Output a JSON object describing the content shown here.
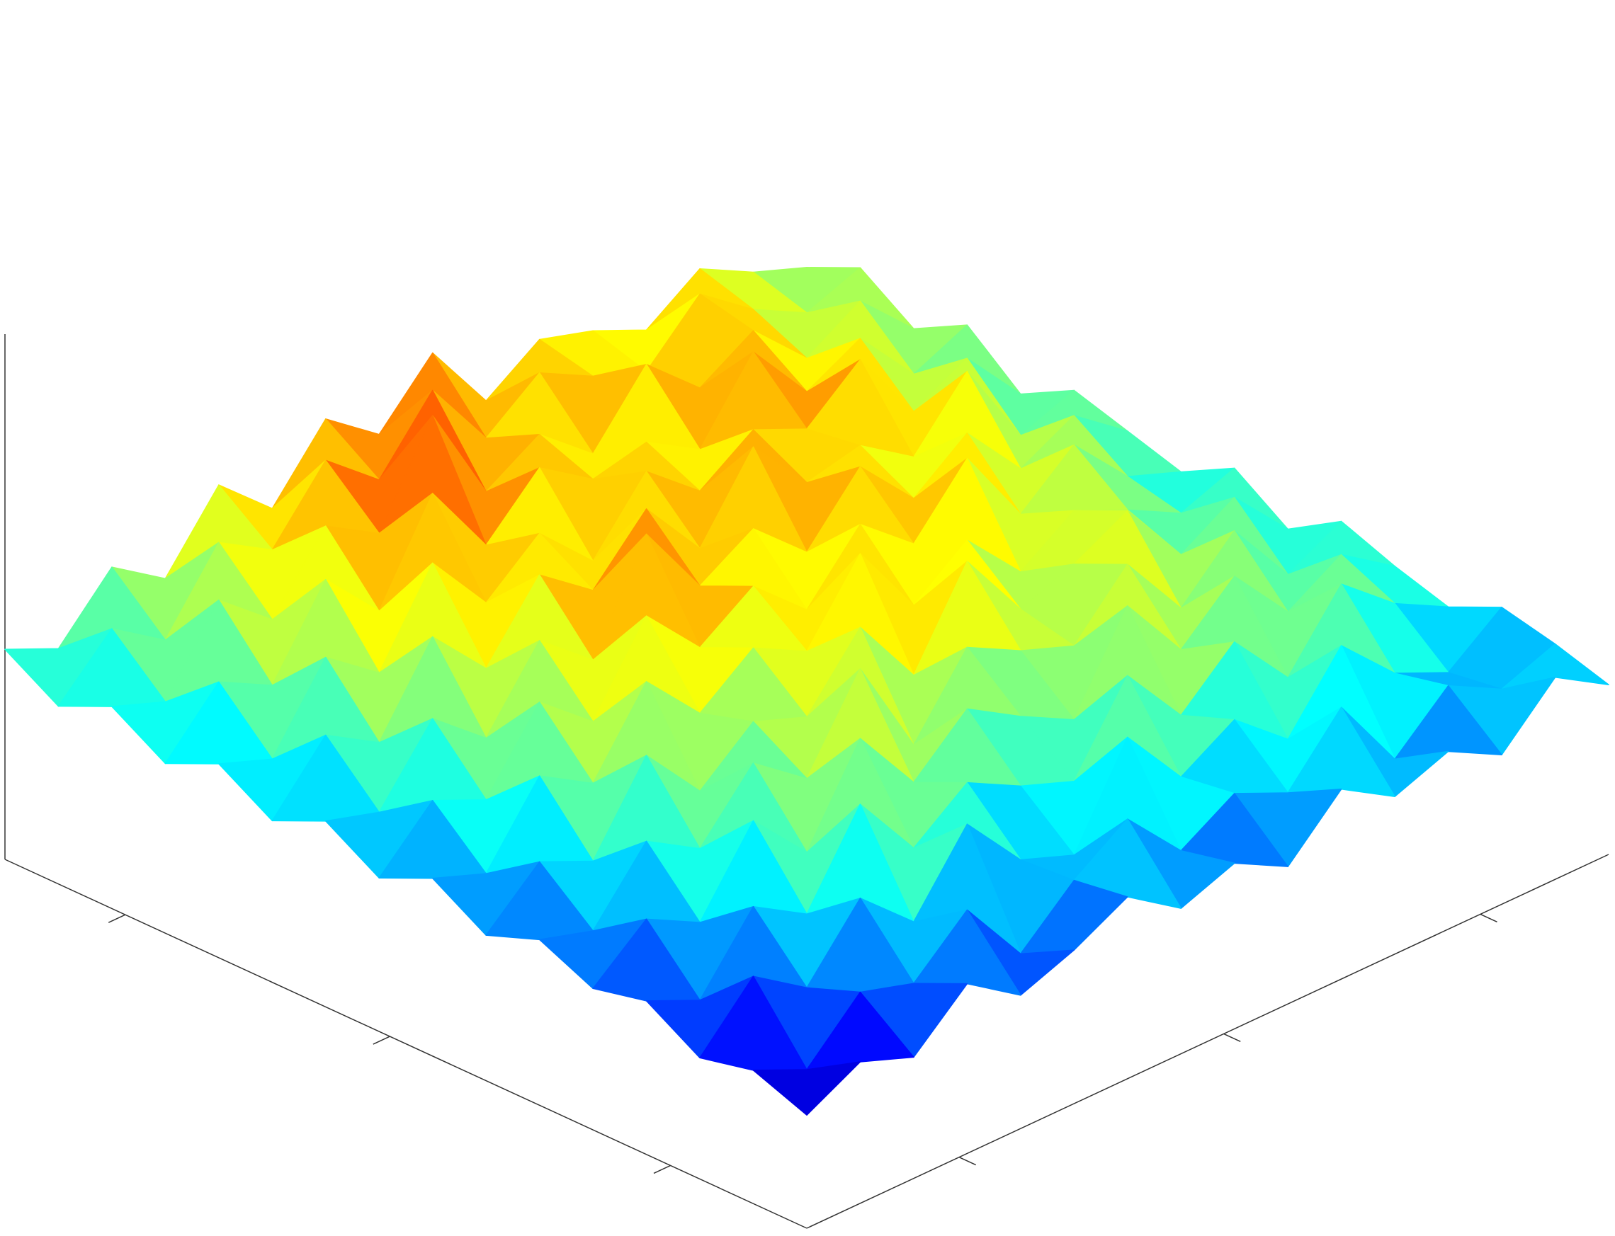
{
  "chart_data": {
    "type": "surface",
    "colormap": "jet",
    "xlim": [
      0,
      1
    ],
    "ylim": [
      0,
      1
    ],
    "zlim": [
      0,
      1.3
    ],
    "clim": [
      0.25,
      0.85
    ],
    "xticks": [
      0.17,
      0.52,
      0.85
    ],
    "yticks": [
      0.19,
      0.52,
      0.84
    ],
    "z": [
      [
        0.28,
        0.35,
        0.3,
        0.42,
        0.33,
        0.38,
        0.45,
        0.36,
        0.41,
        0.34,
        0.47,
        0.39,
        0.44,
        0.37,
        0.5,
        0.42
      ],
      [
        0.33,
        0.27,
        0.4,
        0.36,
        0.48,
        0.31,
        0.43,
        0.52,
        0.38,
        0.46,
        0.4,
        0.55,
        0.36,
        0.48,
        0.41,
        0.46
      ],
      [
        0.3,
        0.44,
        0.35,
        0.51,
        0.39,
        0.57,
        0.42,
        0.37,
        0.6,
        0.44,
        0.52,
        0.41,
        0.58,
        0.45,
        0.39,
        0.49
      ],
      [
        0.38,
        0.32,
        0.49,
        0.41,
        0.62,
        0.45,
        0.55,
        0.48,
        0.43,
        0.63,
        0.47,
        0.59,
        0.44,
        0.61,
        0.5,
        0.43
      ],
      [
        0.35,
        0.46,
        0.39,
        0.58,
        0.44,
        0.66,
        0.49,
        0.61,
        0.53,
        0.46,
        0.68,
        0.51,
        0.63,
        0.48,
        0.56,
        0.47
      ],
      [
        0.41,
        0.37,
        0.53,
        0.45,
        0.6,
        0.5,
        0.71,
        0.46,
        0.64,
        0.57,
        0.52,
        0.66,
        0.49,
        0.62,
        0.45,
        0.52
      ],
      [
        0.36,
        0.48,
        0.42,
        0.62,
        0.47,
        0.58,
        0.53,
        0.69,
        0.51,
        0.73,
        0.55,
        0.6,
        0.67,
        0.5,
        0.58,
        0.44
      ],
      [
        0.44,
        0.39,
        0.57,
        0.49,
        0.68,
        0.54,
        0.64,
        0.57,
        0.75,
        0.56,
        0.66,
        0.52,
        0.61,
        0.55,
        0.48,
        0.53
      ],
      [
        0.38,
        0.51,
        0.45,
        0.63,
        0.52,
        0.72,
        0.58,
        0.67,
        0.55,
        0.7,
        0.59,
        0.74,
        0.54,
        0.65,
        0.51,
        0.46
      ],
      [
        0.46,
        0.42,
        0.59,
        0.48,
        0.66,
        0.55,
        0.8,
        0.61,
        0.69,
        0.57,
        0.72,
        0.58,
        0.68,
        0.53,
        0.6,
        0.5
      ],
      [
        0.4,
        0.55,
        0.47,
        0.67,
        0.53,
        0.7,
        0.6,
        0.74,
        0.58,
        0.77,
        0.62,
        0.65,
        0.56,
        0.71,
        0.49,
        0.54
      ],
      [
        0.48,
        0.43,
        0.62,
        0.52,
        0.73,
        0.57,
        0.68,
        0.55,
        0.71,
        0.6,
        0.69,
        0.63,
        0.74,
        0.55,
        0.62,
        0.47
      ],
      [
        0.42,
        0.56,
        0.49,
        0.69,
        0.55,
        0.78,
        0.59,
        0.72,
        0.63,
        0.66,
        0.58,
        0.76,
        0.6,
        0.67,
        0.52,
        0.58
      ],
      [
        0.5,
        0.45,
        0.64,
        0.53,
        0.7,
        0.62,
        0.85,
        0.6,
        0.68,
        0.57,
        0.73,
        0.61,
        0.69,
        0.56,
        0.64,
        0.51
      ],
      [
        0.44,
        0.57,
        0.48,
        0.66,
        0.58,
        0.74,
        0.63,
        0.79,
        0.61,
        0.71,
        0.64,
        0.59,
        0.72,
        0.62,
        0.55,
        0.6
      ],
      [
        0.52,
        0.46,
        0.6,
        0.51,
        0.68,
        0.56,
        0.72,
        0.62,
        0.76,
        0.58,
        0.67,
        0.63,
        0.57,
        0.66,
        0.59,
        0.54
      ]
    ]
  }
}
